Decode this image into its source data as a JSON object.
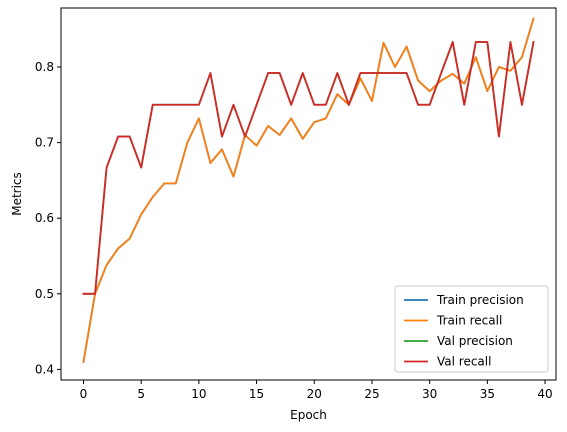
{
  "chart_data": {
    "type": "line",
    "title": "",
    "xlabel": "Epoch",
    "ylabel": "Metrics",
    "xlim": [
      -1.95,
      40.95
    ],
    "ylim": [
      0.386,
      0.878
    ],
    "xticks": [
      0,
      5,
      10,
      15,
      20,
      25,
      30,
      35,
      40
    ],
    "yticks": [
      0.4,
      0.5,
      0.6,
      0.7,
      0.8
    ],
    "ytick_labels": [
      "0.4",
      "0.5",
      "0.6",
      "0.7",
      "0.8"
    ],
    "grid": false,
    "legend_position": "lower-right",
    "x": [
      0,
      1,
      2,
      3,
      4,
      5,
      6,
      7,
      8,
      9,
      10,
      11,
      12,
      13,
      14,
      15,
      16,
      17,
      18,
      19,
      20,
      21,
      22,
      23,
      24,
      25,
      26,
      27,
      28,
      29,
      30,
      31,
      32,
      33,
      34,
      35,
      36,
      37,
      38,
      39
    ],
    "series": [
      {
        "name": "Train precision",
        "color": "#1f77b4",
        "values": [
          0.41,
          0.5,
          0.538,
          0.56,
          0.573,
          0.605,
          0.628,
          0.646,
          0.646,
          0.7,
          0.732,
          0.673,
          0.691,
          0.655,
          0.71,
          0.696,
          0.722,
          0.71,
          0.732,
          0.705,
          0.727,
          0.732,
          0.764,
          0.75,
          0.785,
          0.755,
          0.832,
          0.8,
          0.827,
          0.782,
          0.768,
          0.782,
          0.791,
          0.778,
          0.813,
          0.768,
          0.8,
          0.795,
          0.813,
          0.864
        ]
      },
      {
        "name": "Train recall",
        "color": "#ff7f0e",
        "values": [
          0.41,
          0.5,
          0.538,
          0.56,
          0.573,
          0.605,
          0.628,
          0.646,
          0.646,
          0.7,
          0.732,
          0.673,
          0.691,
          0.655,
          0.71,
          0.696,
          0.722,
          0.71,
          0.732,
          0.705,
          0.727,
          0.732,
          0.764,
          0.75,
          0.785,
          0.755,
          0.832,
          0.8,
          0.827,
          0.782,
          0.768,
          0.782,
          0.791,
          0.778,
          0.813,
          0.768,
          0.8,
          0.795,
          0.813,
          0.864
        ]
      },
      {
        "name": "Val precision",
        "color": "#2ca02c",
        "values": [
          0.5,
          0.5,
          0.667,
          0.708,
          0.708,
          0.667,
          0.75,
          0.75,
          0.75,
          0.75,
          0.75,
          0.792,
          0.708,
          0.75,
          0.708,
          0.75,
          0.792,
          0.792,
          0.75,
          0.792,
          0.75,
          0.75,
          0.792,
          0.75,
          0.792,
          0.792,
          0.792,
          0.792,
          0.792,
          0.75,
          0.75,
          0.792,
          0.833,
          0.75,
          0.833,
          0.833,
          0.708,
          0.833,
          0.75,
          0.833
        ]
      },
      {
        "name": "Val recall",
        "color": "#d62728",
        "values": [
          0.5,
          0.5,
          0.667,
          0.708,
          0.708,
          0.667,
          0.75,
          0.75,
          0.75,
          0.75,
          0.75,
          0.792,
          0.708,
          0.75,
          0.708,
          0.75,
          0.792,
          0.792,
          0.75,
          0.792,
          0.75,
          0.75,
          0.792,
          0.75,
          0.792,
          0.792,
          0.792,
          0.792,
          0.792,
          0.75,
          0.75,
          0.792,
          0.833,
          0.75,
          0.833,
          0.833,
          0.708,
          0.833,
          0.75,
          0.833
        ]
      }
    ]
  }
}
